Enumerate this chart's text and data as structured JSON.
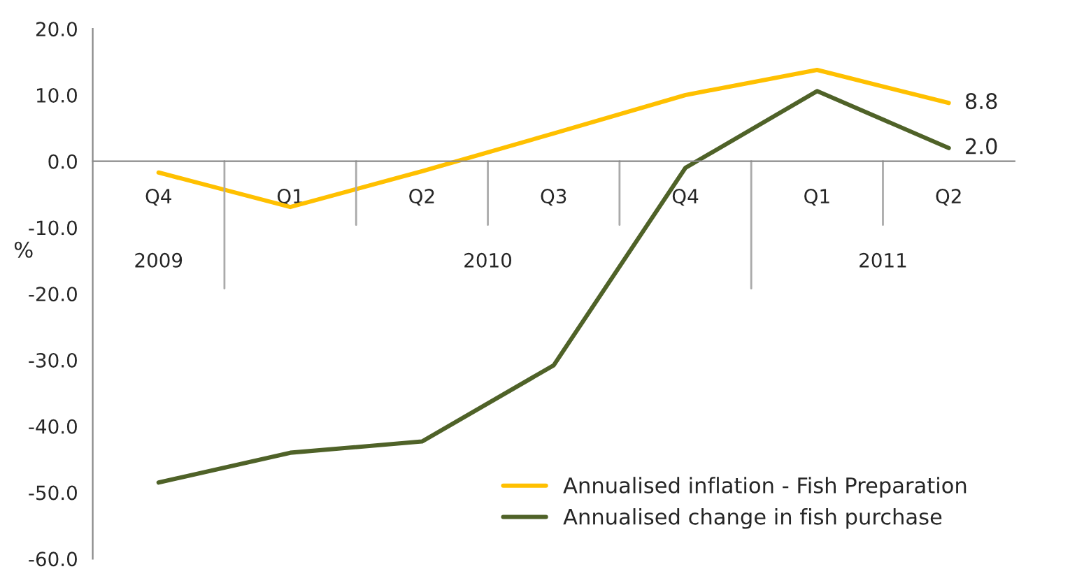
{
  "chart_data": {
    "type": "line",
    "ylabel": "%",
    "categories": [
      "Q4",
      "Q1",
      "Q2",
      "Q3",
      "Q4",
      "Q1",
      "Q2"
    ],
    "series": [
      {
        "name": "Annualised inflation - Fish Preparation",
        "color": "#ffc000",
        "values": [
          -1.7,
          -6.9,
          -1.5,
          4.2,
          10.0,
          13.8,
          8.8
        ],
        "value_labels": [
          null,
          null,
          null,
          null,
          null,
          null,
          "8.8"
        ]
      },
      {
        "name": "Annualised change in fish purchase",
        "color": "#4f6228",
        "values": [
          -48.5,
          -44.0,
          -42.3,
          -30.8,
          -1.0,
          10.6,
          2.0
        ],
        "value_labels": [
          null,
          null,
          null,
          null,
          null,
          null,
          "2.0"
        ]
      }
    ],
    "annotations": [
      "2009",
      "2010",
      "2011"
    ],
    "ylim": [
      -60,
      20
    ],
    "yticks": [
      {
        "value": -60,
        "label": "-60.0"
      },
      {
        "value": -50,
        "label": "-50.0"
      },
      {
        "value": -40,
        "label": "-40.0"
      },
      {
        "value": -30,
        "label": "-30.0"
      },
      {
        "value": -20,
        "label": "-20.0"
      },
      {
        "value": -10,
        "label": "-10.0"
      },
      {
        "value": 0,
        "label": "0.0"
      },
      {
        "value": 10,
        "label": "10.0"
      },
      {
        "value": 20,
        "label": "20.0"
      }
    ],
    "grid": false,
    "legend": "bottom right",
    "marker": "none",
    "line_style": "solid"
  }
}
